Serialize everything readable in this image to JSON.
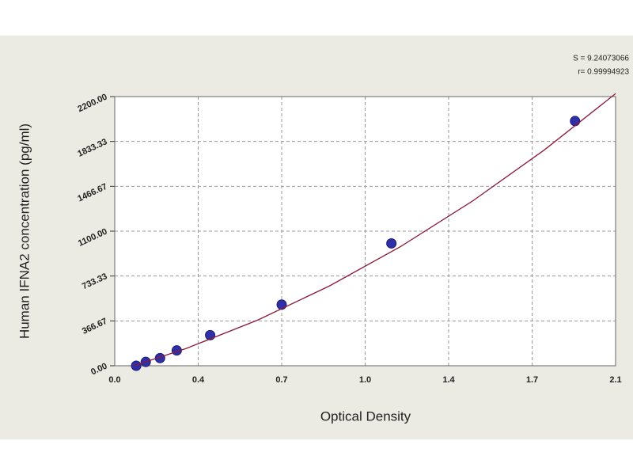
{
  "chart_data": {
    "type": "scatter",
    "x_label": "Optical Density",
    "y_label": "Human IFNA2 concentration (pg/ml)",
    "annotations": [
      "S = 9.24073066",
      "r= 0.99994923"
    ],
    "xlim": [
      0,
      2.1
    ],
    "ylim": [
      0,
      2200
    ],
    "xticks": [
      {
        "value": 0,
        "label": "0.0"
      },
      {
        "value": 0.35,
        "label": "0.4"
      },
      {
        "value": 0.7,
        "label": "0.7"
      },
      {
        "value": 1.05,
        "label": "1.0"
      },
      {
        "value": 1.4,
        "label": "1.4"
      },
      {
        "value": 1.75,
        "label": "1.7"
      },
      {
        "value": 2.1,
        "label": "2.1"
      }
    ],
    "yticks": [
      {
        "value": 0,
        "label": "0.00"
      },
      {
        "value": 366.67,
        "label": "366.67"
      },
      {
        "value": 733.33,
        "label": "733.33"
      },
      {
        "value": 1100,
        "label": "1100.00"
      },
      {
        "value": 1466.67,
        "label": "1466.67"
      },
      {
        "value": 1833.33,
        "label": "1833.33"
      },
      {
        "value": 2200,
        "label": "2200.00"
      }
    ],
    "grid": true,
    "series": [
      {
        "color": "#2f2fa8",
        "x": [
          0.09,
          0.13,
          0.19,
          0.26,
          0.4,
          0.7,
          1.16,
          1.93
        ],
        "values": [
          0,
          31.25,
          62.5,
          125,
          250,
          500,
          1000,
          2000
        ]
      },
      {
        "type": "line",
        "color": "#8b1a3a",
        "x": [
          0.08,
          0.3,
          0.6,
          0.9,
          1.2,
          1.5,
          1.8,
          2.1
        ],
        "values": [
          0,
          141.5,
          373.8,
          652,
          976,
          1346,
          1762,
          2224
        ]
      }
    ]
  }
}
